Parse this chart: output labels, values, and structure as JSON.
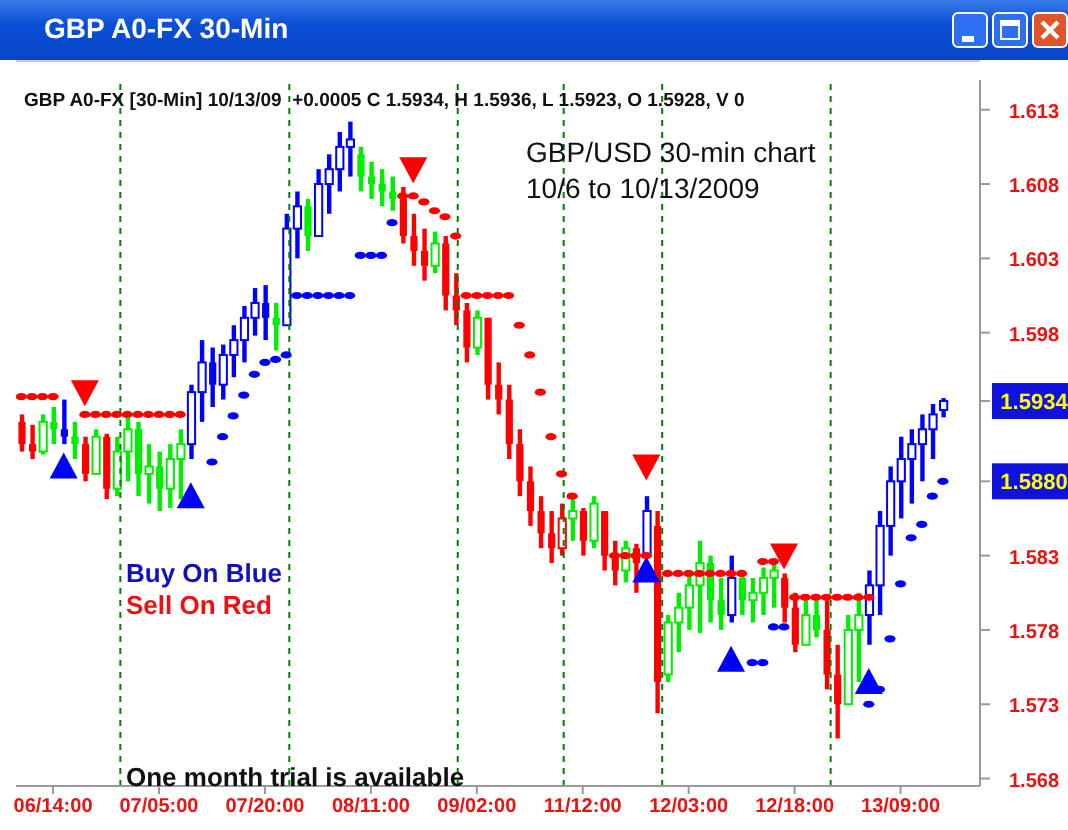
{
  "chart_data": {
    "type": "candlestick",
    "title": "GBP A0-FX 30-Min",
    "subtitle": "GBP A0-FX [30-Min] 10/13/09  +0.0005 C 1.5934, H 1.5936, L 1.5923, O 1.5928, V 0",
    "categories": [
      null,
      null,
      null,
      "06/14:00",
      null,
      null,
      null,
      null,
      null,
      null,
      null,
      null,
      null,
      "07/05:00",
      null,
      null,
      null,
      null,
      null,
      null,
      null,
      null,
      null,
      "07/20:00",
      null,
      null,
      null,
      null,
      null,
      null,
      null,
      null,
      null,
      "08/11:00",
      null,
      null,
      null,
      null,
      null,
      null,
      null,
      null,
      null,
      "09/02:00",
      null,
      null,
      null,
      null,
      null,
      null,
      null,
      null,
      null,
      "11/12:00",
      null,
      null,
      null,
      null,
      null,
      null,
      null,
      null,
      null,
      "12/03:00",
      null,
      null,
      null,
      null,
      null,
      null,
      null,
      null,
      null,
      "12/18:00",
      null,
      null,
      null,
      null,
      null,
      null,
      null,
      null,
      null,
      "13/09:00",
      null,
      null,
      null,
      null,
      null,
      null,
      null
    ],
    "ohlc": [
      [
        1.592,
        1.5925,
        1.59,
        1.5905
      ],
      [
        1.5905,
        1.5918,
        1.5895,
        1.59
      ],
      [
        1.59,
        1.5925,
        1.5898,
        1.592
      ],
      [
        1.592,
        1.593,
        1.5905,
        1.5915
      ],
      [
        1.5915,
        1.5935,
        1.5905,
        1.591
      ],
      [
        1.591,
        1.592,
        1.5895,
        1.5905
      ],
      [
        1.5905,
        1.591,
        1.588,
        1.5885
      ],
      [
        1.5885,
        1.5915,
        1.5885,
        1.591
      ],
      [
        1.591,
        1.5912,
        1.5868,
        1.5875
      ],
      [
        1.5875,
        1.591,
        1.587,
        1.59
      ],
      [
        1.59,
        1.5925,
        1.588,
        1.5915
      ],
      [
        1.5915,
        1.592,
        1.587,
        1.5885
      ],
      [
        1.5885,
        1.5905,
        1.5865,
        1.589
      ],
      [
        1.589,
        1.59,
        1.586,
        1.5875
      ],
      [
        1.5875,
        1.5905,
        1.5862,
        1.5895
      ],
      [
        1.5895,
        1.5915,
        1.5868,
        1.5905
      ],
      [
        1.5905,
        1.5945,
        1.5895,
        1.594
      ],
      [
        1.594,
        1.5975,
        1.592,
        1.596
      ],
      [
        1.596,
        1.597,
        1.593,
        1.5945
      ],
      [
        1.5945,
        1.5972,
        1.5935,
        1.5965
      ],
      [
        1.5965,
        1.5985,
        1.595,
        1.5975
      ],
      [
        1.5975,
        1.5998,
        1.596,
        1.599
      ],
      [
        1.599,
        1.601,
        1.5978,
        1.6
      ],
      [
        1.6,
        1.6012,
        1.5975,
        1.599
      ],
      [
        1.599,
        1.6,
        1.5968,
        1.5985
      ],
      [
        1.5985,
        1.606,
        1.5985,
        1.605
      ],
      [
        1.605,
        1.6075,
        1.603,
        1.6065
      ],
      [
        1.6065,
        1.607,
        1.6035,
        1.6045
      ],
      [
        1.6045,
        1.609,
        1.6045,
        1.608
      ],
      [
        1.608,
        1.61,
        1.606,
        1.609
      ],
      [
        1.609,
        1.6115,
        1.6075,
        1.6105
      ],
      [
        1.6105,
        1.6122,
        1.6085,
        1.611
      ],
      [
        1.61,
        1.6105,
        1.6075,
        1.6085
      ],
      [
        1.6085,
        1.6095,
        1.607,
        1.608
      ],
      [
        1.608,
        1.609,
        1.6065,
        1.6075
      ],
      [
        1.6075,
        1.6085,
        1.6062,
        1.607
      ],
      [
        1.607,
        1.6078,
        1.604,
        1.6045
      ],
      [
        1.6045,
        1.606,
        1.6025,
        1.6035
      ],
      [
        1.6035,
        1.605,
        1.6015,
        1.6025
      ],
      [
        1.6025,
        1.6048,
        1.602,
        1.604
      ],
      [
        1.604,
        1.6045,
        1.5995,
        1.6005
      ],
      [
        1.6005,
        1.602,
        1.5985,
        1.5995
      ],
      [
        1.5995,
        1.6,
        1.596,
        1.597
      ],
      [
        1.597,
        1.5995,
        1.5965,
        1.599
      ],
      [
        1.599,
        1.599,
        1.5935,
        1.5945
      ],
      [
        1.5945,
        1.596,
        1.5925,
        1.5935
      ],
      [
        1.5935,
        1.5945,
        1.5895,
        1.5905
      ],
      [
        1.5905,
        1.5915,
        1.587,
        1.588
      ],
      [
        1.588,
        1.589,
        1.585,
        1.586
      ],
      [
        1.586,
        1.587,
        1.5835,
        1.5845
      ],
      [
        1.5845,
        1.586,
        1.5825,
        1.5835
      ],
      [
        1.5835,
        1.5865,
        1.583,
        1.5855
      ],
      [
        1.5855,
        1.5868,
        1.584,
        1.586
      ],
      [
        1.586,
        1.5862,
        1.583,
        1.584
      ],
      [
        1.584,
        1.587,
        1.5835,
        1.5865
      ],
      [
        1.586,
        1.586,
        1.582,
        1.583
      ],
      [
        1.583,
        1.584,
        1.581,
        1.582
      ],
      [
        1.582,
        1.584,
        1.5812,
        1.5835
      ],
      [
        1.5835,
        1.5838,
        1.5805,
        1.5825
      ],
      [
        1.583,
        1.587,
        1.583,
        1.586
      ],
      [
        1.585,
        1.586,
        1.5724,
        1.5745
      ],
      [
        1.575,
        1.579,
        1.5745,
        1.5785
      ],
      [
        1.5785,
        1.5805,
        1.5765,
        1.5795
      ],
      [
        1.5795,
        1.582,
        1.578,
        1.581
      ],
      [
        1.581,
        1.584,
        1.5778,
        1.5825
      ],
      [
        1.5825,
        1.583,
        1.5785,
        1.58
      ],
      [
        1.58,
        1.5815,
        1.578,
        1.579
      ],
      [
        1.579,
        1.583,
        1.5785,
        1.5815
      ],
      [
        1.5815,
        1.582,
        1.579,
        1.58
      ],
      [
        1.58,
        1.5815,
        1.5785,
        1.5805
      ],
      [
        1.5805,
        1.5822,
        1.579,
        1.5815
      ],
      [
        1.5815,
        1.5825,
        1.5795,
        1.582
      ],
      [
        1.5815,
        1.5818,
        1.5785,
        1.5795
      ],
      [
        1.5795,
        1.5805,
        1.5765,
        1.577
      ],
      [
        1.577,
        1.58,
        1.577,
        1.579
      ],
      [
        1.579,
        1.58,
        1.5775,
        1.578
      ],
      [
        1.578,
        1.58,
        1.574,
        1.575
      ],
      [
        1.575,
        1.577,
        1.5707,
        1.573
      ],
      [
        1.573,
        1.579,
        1.573,
        1.578
      ],
      [
        1.578,
        1.5805,
        1.5745,
        1.579
      ],
      [
        1.579,
        1.582,
        1.577,
        1.581
      ],
      [
        1.581,
        1.586,
        1.579,
        1.585
      ],
      [
        1.585,
        1.589,
        1.583,
        1.588
      ],
      [
        1.588,
        1.591,
        1.5855,
        1.5895
      ],
      [
        1.5895,
        1.5915,
        1.5865,
        1.5905
      ],
      [
        1.5905,
        1.5925,
        1.588,
        1.5915
      ],
      [
        1.5915,
        1.5932,
        1.5895,
        1.5925
      ],
      [
        1.5928,
        1.5936,
        1.5923,
        1.5934
      ],
      null,
      null,
      null
    ],
    "colors": [
      "#ff0000",
      "#ff0000",
      "#00ee00",
      "#00ee00",
      "#0000ff",
      "#00ee00",
      "#ff0000",
      "#00ee00",
      "#ff0000",
      "#00ee00",
      "#00ee00",
      "#00ee00",
      "#00ee00",
      "#00ee00",
      "#00ee00",
      "#00ee00",
      "#0000ff",
      "#0000ff",
      "#0000ff",
      "#0000ff",
      "#0000ff",
      "#0000ff",
      "#0000ff",
      "#0000ff",
      "#00ee00",
      "#0000ff",
      "#0000ff",
      "#00ee00",
      "#0000ff",
      "#0000ff",
      "#0000ff",
      "#0000ff",
      "#00ee00",
      "#00ee00",
      "#00ee00",
      "#00ee00",
      "#ff0000",
      "#ff0000",
      "#ff0000",
      "#00ee00",
      "#ff0000",
      "#ff0000",
      "#ff0000",
      "#00ee00",
      "#ff0000",
      "#ff0000",
      "#ff0000",
      "#ff0000",
      "#ff0000",
      "#ff0000",
      "#ff0000",
      "#ff0000",
      "#00ee00",
      "#ff0000",
      "#00ee00",
      "#ff0000",
      "#ff0000",
      "#00ee00",
      "#ff0000",
      "#0000ff",
      "#ff0000",
      "#00ee00",
      "#00ee00",
      "#00ee00",
      "#00ee00",
      "#00ee00",
      "#00ee00",
      "#0000ff",
      "#00ee00",
      "#00ee00",
      "#00ee00",
      "#00ee00",
      "#ff0000",
      "#ff0000",
      "#00ee00",
      "#00ee00",
      "#ff0000",
      "#ff0000",
      "#00ee00",
      "#00ee00",
      "#0000ff",
      "#0000ff",
      "#0000ff",
      "#0000ff",
      "#0000ff",
      "#0000ff",
      "#0000ff",
      "#0000ff",
      null,
      null,
      null
    ],
    "series": [
      {
        "type": "scatter",
        "marker": "circle",
        "color": "#ff0000",
        "values": [
          1.5937,
          1.5937,
          1.5937,
          1.5937,
          null,
          null,
          1.5925,
          1.5925,
          1.5925,
          1.5925,
          1.5925,
          1.5925,
          1.5925,
          1.5925,
          1.5925,
          1.5925,
          null,
          null,
          null,
          null,
          null,
          null,
          null,
          null,
          null,
          null,
          null,
          null,
          null,
          null,
          null,
          null,
          null,
          null,
          null,
          null,
          1.6072,
          1.6072,
          1.6068,
          1.6062,
          1.6058,
          1.6045,
          1.6005,
          1.6005,
          1.6005,
          1.6005,
          1.6005,
          1.5985,
          1.5965,
          1.594,
          1.591,
          1.5885,
          1.587,
          null,
          null,
          null,
          1.583,
          1.583,
          1.583,
          1.583,
          null,
          1.5818,
          1.5818,
          1.5818,
          1.5818,
          1.5818,
          1.5818,
          1.5818,
          1.5818,
          null,
          1.5826,
          1.5826,
          null,
          1.5802,
          1.5802,
          1.5802,
          1.5802,
          1.5802,
          1.5802,
          1.5802,
          1.5802,
          null,
          null,
          null,
          null,
          null,
          null,
          null,
          null,
          null,
          null
        ]
      },
      {
        "type": "scatter",
        "marker": "circle",
        "color": "#0000ff",
        "values": [
          null,
          null,
          null,
          null,
          null,
          null,
          null,
          null,
          null,
          null,
          null,
          null,
          null,
          null,
          null,
          null,
          null,
          null,
          1.5893,
          1.591,
          1.5924,
          1.5938,
          1.5952,
          1.596,
          1.5962,
          1.5965,
          1.6005,
          1.6005,
          1.6005,
          1.6005,
          1.6005,
          1.6005,
          1.6032,
          1.6032,
          1.6032,
          1.6054,
          null,
          null,
          null,
          null,
          null,
          null,
          null,
          null,
          null,
          null,
          null,
          null,
          null,
          null,
          null,
          null,
          null,
          null,
          null,
          null,
          null,
          null,
          null,
          null,
          null,
          null,
          null,
          null,
          null,
          null,
          null,
          null,
          null,
          1.5758,
          1.5758,
          1.5782,
          1.5782,
          null,
          null,
          null,
          null,
          null,
          null,
          null,
          1.573,
          1.574,
          1.5774,
          1.5811,
          1.5842,
          1.5851,
          1.587,
          1.588,
          null,
          null,
          null
        ]
      },
      {
        "type": "scatter",
        "marker": "triangle",
        "color": "#ff0000",
        "values": [
          null,
          null,
          null,
          null,
          null,
          null,
          1.594,
          null,
          null,
          null,
          null,
          null,
          null,
          null,
          null,
          null,
          null,
          null,
          null,
          null,
          null,
          null,
          null,
          null,
          null,
          null,
          null,
          null,
          null,
          null,
          null,
          null,
          null,
          null,
          null,
          null,
          null,
          1.609,
          null,
          null,
          null,
          null,
          null,
          null,
          null,
          null,
          null,
          null,
          null,
          null,
          null,
          null,
          null,
          null,
          null,
          null,
          null,
          null,
          null,
          1.589,
          null,
          null,
          null,
          null,
          null,
          null,
          null,
          null,
          null,
          null,
          null,
          null,
          1.583,
          null,
          null,
          null,
          null,
          null,
          null,
          null,
          null,
          null,
          null,
          null,
          null,
          null,
          null,
          null,
          null,
          null,
          null
        ]
      },
      {
        "type": "scatter",
        "marker": "triangle",
        "color": "#0000ff",
        "values": [
          null,
          null,
          null,
          null,
          1.589,
          null,
          null,
          null,
          null,
          null,
          null,
          null,
          null,
          null,
          null,
          null,
          1.587,
          null,
          null,
          null,
          null,
          null,
          null,
          null,
          null,
          null,
          null,
          null,
          null,
          null,
          null,
          null,
          null,
          null,
          null,
          null,
          null,
          null,
          null,
          null,
          null,
          null,
          null,
          null,
          null,
          null,
          null,
          null,
          null,
          null,
          null,
          null,
          null,
          null,
          null,
          null,
          null,
          null,
          null,
          1.582,
          null,
          null,
          null,
          null,
          null,
          null,
          null,
          1.576,
          null,
          null,
          null,
          null,
          null,
          null,
          null,
          null,
          null,
          null,
          null,
          null,
          1.5745,
          null,
          null,
          null,
          null,
          null,
          null,
          null,
          null,
          null,
          null
        ]
      }
    ],
    "ylim": [
      1.5675,
      1.615
    ],
    "yticks": [
      1.568,
      1.573,
      1.578,
      1.583,
      {
        "value": 1.588,
        "label": "1.5880"
      },
      {
        "value": 1.5934,
        "label": "1.5934"
      },
      1.598,
      1.603,
      1.608,
      1.613
    ],
    "annotations": [
      "GBP/USD 30-min chart\n10/6 to 10/13/2009",
      "Buy On Blue",
      "Sell On Red",
      "One month trial is available"
    ]
  }
}
